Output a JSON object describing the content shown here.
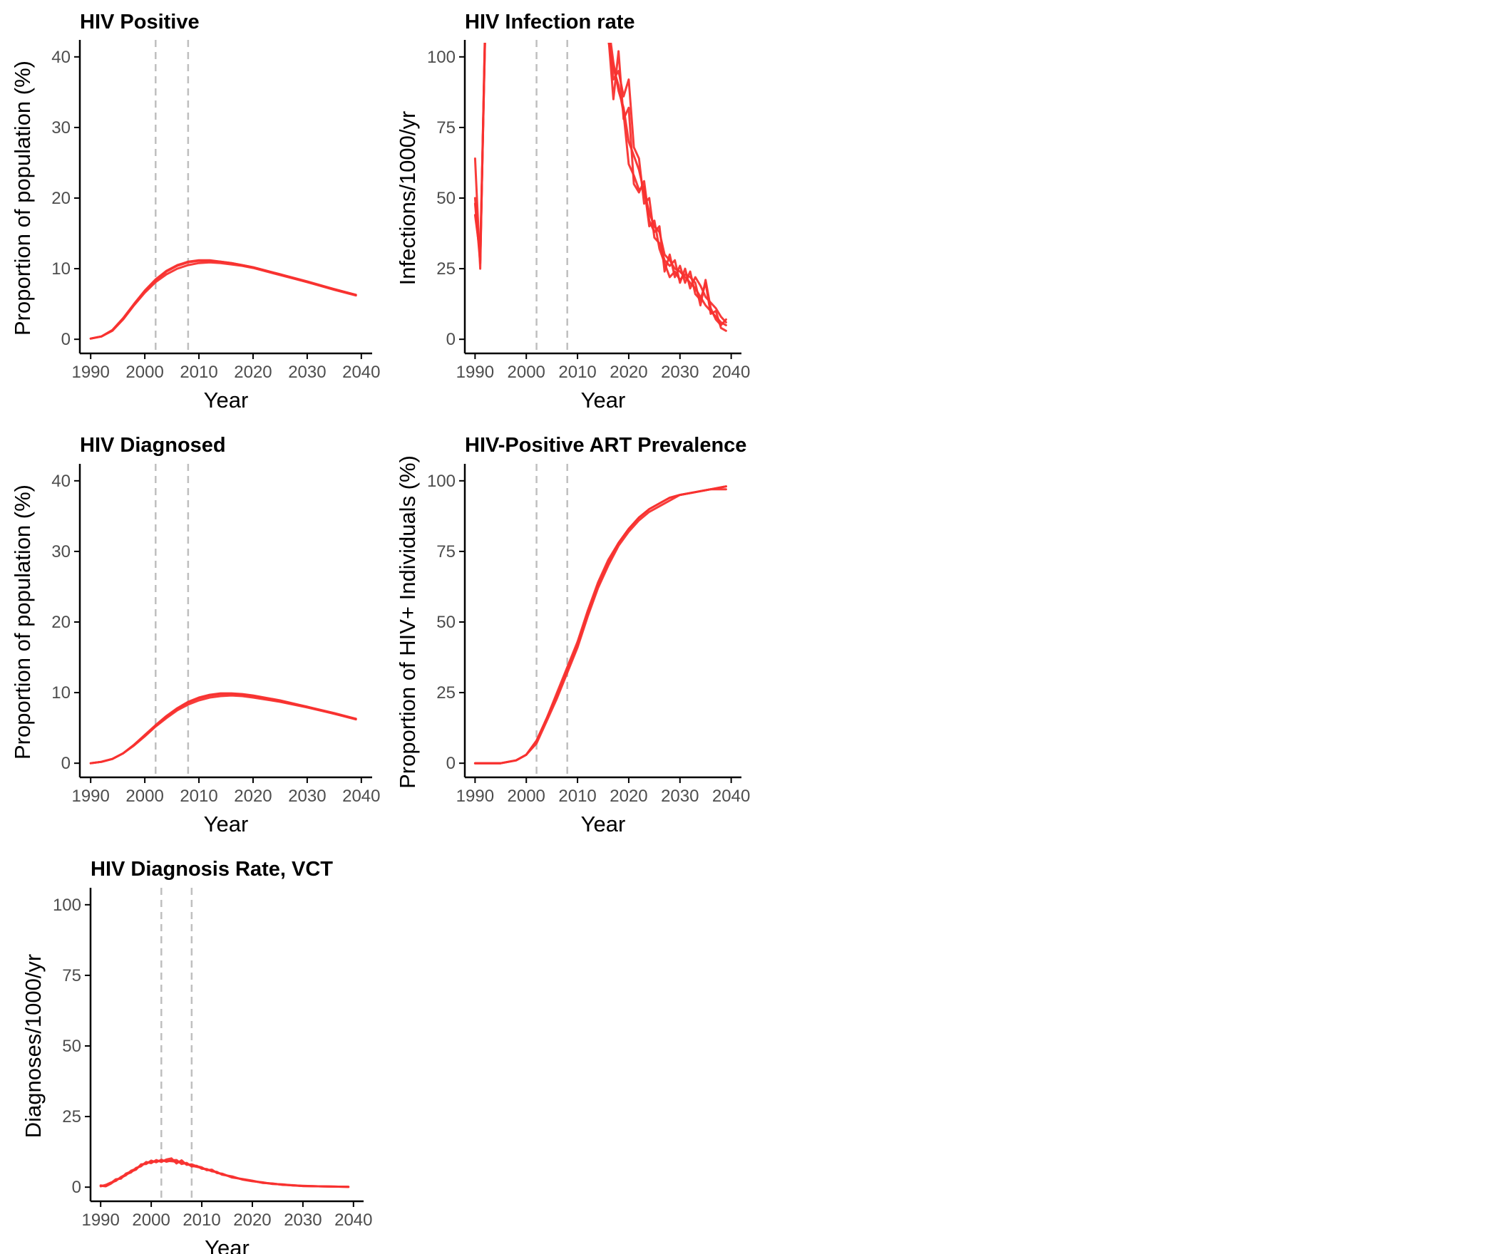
{
  "colors": {
    "series": "#f8312f",
    "vline": "#bfbfbf",
    "axis": "#000000",
    "tick_text": "#4d4d4d"
  },
  "chart_data": [
    {
      "type": "line",
      "title": "HIV Positive",
      "xlabel": "Year",
      "ylabel": "Proportion of population (%)",
      "xlim": [
        1988,
        2042
      ],
      "ylim": [
        -2,
        42
      ],
      "xticks": [
        "1990",
        "2000",
        "2010",
        "2020",
        "2030",
        "2040"
      ],
      "yticks": [
        "0",
        "10",
        "20",
        "30",
        "40"
      ],
      "vlines": [
        2002,
        2008
      ],
      "grid": false,
      "legend": "none",
      "series": [
        {
          "x": [
            1990,
            1992,
            1994,
            1996,
            1998,
            2000,
            2002,
            2004,
            2006,
            2008,
            2010,
            2012,
            2014,
            2016,
            2018,
            2020,
            2025,
            2030,
            2035,
            2039
          ],
          "y": [
            0.1,
            0.4,
            1.3,
            3.0,
            5.0,
            6.9,
            8.5,
            9.7,
            10.5,
            11.0,
            11.2,
            11.2,
            11.0,
            10.8,
            10.5,
            10.2,
            9.2,
            8.1,
            7.0,
            6.2
          ]
        },
        {
          "x": [
            1990,
            1992,
            1994,
            1996,
            1998,
            2000,
            2002,
            2004,
            2006,
            2008,
            2010,
            2012,
            2014,
            2016,
            2018,
            2020,
            2025,
            2030,
            2035,
            2039
          ],
          "y": [
            0.1,
            0.4,
            1.2,
            2.8,
            4.8,
            6.6,
            8.1,
            9.2,
            10.0,
            10.5,
            10.8,
            10.9,
            10.8,
            10.6,
            10.4,
            10.1,
            9.1,
            8.1,
            7.1,
            6.3
          ]
        },
        {
          "x": [
            1990,
            1992,
            1994,
            1996,
            1998,
            2000,
            2002,
            2004,
            2006,
            2008,
            2010,
            2012,
            2014,
            2016,
            2018,
            2020,
            2025,
            2030,
            2035,
            2039
          ],
          "y": [
            0.1,
            0.4,
            1.3,
            2.9,
            4.9,
            6.8,
            8.3,
            9.6,
            10.4,
            10.9,
            11.1,
            11.1,
            11.0,
            10.8,
            10.5,
            10.2,
            9.2,
            8.2,
            7.1,
            6.3
          ]
        }
      ]
    },
    {
      "type": "line",
      "title": "HIV Infection rate",
      "xlabel": "Year",
      "ylabel": "Infections/1000/yr",
      "xlim": [
        1988,
        2042
      ],
      "ylim": [
        -5,
        105
      ],
      "xticks": [
        "1990",
        "2000",
        "2010",
        "2020",
        "2030",
        "2040"
      ],
      "yticks": [
        "0",
        "25",
        "50",
        "75",
        "100"
      ],
      "vlines": [
        2002,
        2008
      ],
      "grid": false,
      "legend": "none",
      "series": [
        {
          "x": [
            1990,
            1991,
            1992,
            1993,
            2016,
            2017,
            2018,
            2019,
            2020,
            2021,
            2022,
            2023,
            2024,
            2025,
            2026,
            2027,
            2028,
            2029,
            2030,
            2031,
            2032,
            2033,
            2034,
            2035,
            2036,
            2037,
            2038,
            2039
          ],
          "y": [
            64,
            25,
            115,
            160,
            112,
            98,
            88,
            82,
            70,
            65,
            60,
            52,
            45,
            40,
            38,
            30,
            28,
            25,
            24,
            22,
            20,
            18,
            15,
            12,
            10,
            8,
            6,
            5
          ]
        },
        {
          "x": [
            1990,
            1991,
            1992,
            1993,
            2016,
            2017,
            2018,
            2019,
            2020,
            2021,
            2022,
            2023,
            2024,
            2025,
            2026,
            2027,
            2028,
            2029,
            2030,
            2031,
            2032,
            2033,
            2034,
            2035,
            2036,
            2037,
            2038,
            2039
          ],
          "y": [
            50,
            28,
            110,
            160,
            108,
            85,
            102,
            78,
            82,
            55,
            52,
            56,
            42,
            38,
            40,
            24,
            30,
            22,
            26,
            20,
            24,
            16,
            14,
            20,
            9,
            10,
            4,
            3
          ]
        },
        {
          "x": [
            1990,
            1991,
            1992,
            1993,
            2016,
            2017,
            2018,
            2019,
            2020,
            2021,
            2022,
            2023,
            2024,
            2025,
            2026,
            2027,
            2028,
            2029,
            2030,
            2031,
            2032,
            2033,
            2034,
            2035,
            2036,
            2037,
            2038,
            2039
          ],
          "y": [
            44,
            30,
            112,
            160,
            110,
            92,
            95,
            86,
            92,
            68,
            64,
            48,
            50,
            36,
            34,
            28,
            26,
            28,
            20,
            25,
            18,
            22,
            19,
            15,
            13,
            11,
            8,
            6
          ]
        },
        {
          "x": [
            1990,
            1991,
            1992,
            1993,
            2016,
            2017,
            2018,
            2019,
            2020,
            2021,
            2022,
            2023,
            2024,
            2025,
            2026,
            2027,
            2028,
            2029,
            2030,
            2031,
            2032,
            2033,
            2034,
            2035,
            2036,
            2037,
            2038,
            2039
          ],
          "y": [
            48,
            27,
            111,
            160,
            106,
            96,
            90,
            80,
            62,
            58,
            53,
            54,
            40,
            42,
            32,
            27,
            22,
            24,
            21,
            23,
            22,
            20,
            12,
            21,
            11,
            7,
            5,
            7
          ]
        }
      ]
    },
    {
      "type": "line",
      "title": "HIV Diagnosed",
      "xlabel": "Year",
      "ylabel": "Proportion of population (%)",
      "xlim": [
        1988,
        2042
      ],
      "ylim": [
        -2,
        42
      ],
      "xticks": [
        "1990",
        "2000",
        "2010",
        "2020",
        "2030",
        "2040"
      ],
      "yticks": [
        "0",
        "10",
        "20",
        "30",
        "40"
      ],
      "vlines": [
        2002,
        2008
      ],
      "grid": false,
      "legend": "none",
      "series": [
        {
          "x": [
            1990,
            1992,
            1994,
            1996,
            1998,
            2000,
            2002,
            2004,
            2006,
            2008,
            2010,
            2012,
            2014,
            2016,
            2018,
            2020,
            2025,
            2030,
            2035,
            2039
          ],
          "y": [
            0.0,
            0.2,
            0.6,
            1.4,
            2.6,
            3.9,
            5.3,
            6.6,
            7.7,
            8.6,
            9.2,
            9.6,
            9.8,
            9.8,
            9.7,
            9.5,
            8.8,
            8.0,
            7.0,
            6.2
          ]
        },
        {
          "x": [
            1990,
            1992,
            1994,
            1996,
            1998,
            2000,
            2002,
            2004,
            2006,
            2008,
            2010,
            2012,
            2014,
            2016,
            2018,
            2020,
            2025,
            2030,
            2035,
            2039
          ],
          "y": [
            0.0,
            0.2,
            0.6,
            1.4,
            2.5,
            3.8,
            5.2,
            6.4,
            7.5,
            8.3,
            8.9,
            9.3,
            9.5,
            9.6,
            9.5,
            9.3,
            8.7,
            7.9,
            7.0,
            6.3
          ]
        },
        {
          "x": [
            1990,
            1992,
            1994,
            1996,
            1998,
            2000,
            2002,
            2004,
            2006,
            2008,
            2010,
            2012,
            2014,
            2016,
            2018,
            2020,
            2025,
            2030,
            2035,
            2039
          ],
          "y": [
            0.0,
            0.2,
            0.6,
            1.4,
            2.6,
            4.0,
            5.4,
            6.7,
            7.8,
            8.7,
            9.3,
            9.7,
            9.9,
            9.9,
            9.8,
            9.6,
            8.9,
            8.0,
            7.1,
            6.3
          ]
        }
      ]
    },
    {
      "type": "line",
      "title": "HIV-Positive ART Prevalence",
      "xlabel": "Year",
      "ylabel": "Proportion of HIV+ Individuals (%)",
      "xlim": [
        1988,
        2042
      ],
      "ylim": [
        -5,
        105
      ],
      "xticks": [
        "1990",
        "2000",
        "2010",
        "2020",
        "2030",
        "2040"
      ],
      "yticks": [
        "0",
        "25",
        "50",
        "75",
        "100"
      ],
      "vlines": [
        2002,
        2008
      ],
      "grid": false,
      "legend": "none",
      "series": [
        {
          "x": [
            1990,
            1995,
            1998,
            2000,
            2002,
            2004,
            2006,
            2008,
            2010,
            2012,
            2014,
            2016,
            2018,
            2020,
            2022,
            2024,
            2026,
            2028,
            2030,
            2033,
            2036,
            2039
          ],
          "y": [
            0,
            0,
            1,
            3,
            8,
            16,
            24,
            33,
            42,
            53,
            63,
            71,
            78,
            83,
            87,
            90,
            92,
            94,
            95,
            96,
            97,
            98
          ]
        },
        {
          "x": [
            1990,
            1995,
            1998,
            2000,
            2002,
            2004,
            2006,
            2008,
            2010,
            2012,
            2014,
            2016,
            2018,
            2020,
            2022,
            2024,
            2026,
            2028,
            2030,
            2033,
            2036,
            2039
          ],
          "y": [
            0,
            0,
            1,
            3,
            7,
            15,
            23,
            32,
            41,
            52,
            62,
            70,
            77,
            82,
            86,
            89,
            91,
            93,
            95,
            96,
            97,
            97
          ]
        },
        {
          "x": [
            1990,
            1995,
            1998,
            2000,
            2002,
            2004,
            2006,
            2008,
            2010,
            2012,
            2014,
            2016,
            2018,
            2020,
            2022,
            2024,
            2026,
            2028,
            2030,
            2033,
            2036,
            2039
          ],
          "y": [
            0,
            0,
            1,
            3,
            8,
            16,
            25,
            34,
            43,
            54,
            64,
            72,
            78,
            83,
            87,
            90,
            92,
            94,
            95,
            96,
            97,
            98
          ]
        }
      ]
    },
    {
      "type": "line",
      "title": "HIV Diagnosis Rate, VCT",
      "xlabel": "Year",
      "ylabel": "Diagnoses/1000/yr",
      "xlim": [
        1988,
        2042
      ],
      "ylim": [
        -5,
        105
      ],
      "xticks": [
        "1990",
        "2000",
        "2010",
        "2020",
        "2030",
        "2040"
      ],
      "yticks": [
        "0",
        "25",
        "50",
        "75",
        "100"
      ],
      "vlines": [
        2002,
        2008
      ],
      "grid": false,
      "legend": "none",
      "series": [
        {
          "x": [
            1990,
            1991,
            1992,
            1993,
            1994,
            1995,
            1996,
            1997,
            1998,
            1999,
            2000,
            2001,
            2002,
            2003,
            2004,
            2005,
            2006,
            2007,
            2008,
            2009,
            2010,
            2011,
            2012,
            2013,
            2014,
            2016,
            2018,
            2020,
            2022,
            2024,
            2026,
            2028,
            2030,
            2033,
            2036,
            2039
          ],
          "y": [
            0.5,
            0.3,
            1.2,
            2.5,
            3.3,
            4.2,
            5.8,
            6.5,
            7.8,
            8.6,
            9.0,
            9.1,
            9.4,
            9.3,
            9.2,
            9.0,
            8.8,
            8.2,
            7.6,
            7.2,
            6.8,
            6.2,
            5.8,
            5.2,
            4.6,
            3.6,
            2.8,
            2.2,
            1.6,
            1.2,
            0.9,
            0.6,
            0.4,
            0.3,
            0.2,
            0.1
          ]
        },
        {
          "x": [
            1990,
            1991,
            1992,
            1993,
            1994,
            1995,
            1996,
            1997,
            1998,
            1999,
            2000,
            2001,
            2002,
            2003,
            2004,
            2005,
            2006,
            2007,
            2008,
            2009,
            2010,
            2011,
            2012,
            2013,
            2014,
            2016,
            2018,
            2020,
            2022,
            2024,
            2026,
            2028,
            2030,
            2033,
            2036,
            2039
          ],
          "y": [
            0.3,
            0.8,
            1.6,
            2.2,
            3.6,
            4.5,
            5.2,
            6.8,
            7.4,
            8.9,
            8.5,
            9.6,
            8.9,
            9.8,
            10.2,
            8.4,
            9.5,
            7.9,
            8.1,
            7.4,
            7.0,
            6.0,
            6.2,
            5.0,
            4.8,
            3.4,
            2.9,
            2.3,
            1.5,
            1.3,
            0.8,
            0.7,
            0.4,
            0.3,
            0.2,
            0.1
          ]
        },
        {
          "x": [
            1990,
            1991,
            1992,
            1993,
            1994,
            1995,
            1996,
            1997,
            1998,
            1999,
            2000,
            2001,
            2002,
            2003,
            2004,
            2005,
            2006,
            2007,
            2008,
            2009,
            2010,
            2011,
            2012,
            2013,
            2014,
            2016,
            2018,
            2020,
            2022,
            2024,
            2026,
            2028,
            2030,
            2033,
            2036,
            2039
          ],
          "y": [
            0.6,
            0.4,
            1.4,
            2.8,
            3.0,
            4.8,
            5.5,
            6.2,
            8.1,
            8.2,
            9.4,
            8.8,
            9.7,
            9.0,
            9.5,
            9.6,
            8.2,
            8.6,
            7.3,
            7.6,
            6.5,
            6.4,
            5.6,
            5.4,
            4.4,
            3.8,
            2.7,
            2.1,
            1.7,
            1.1,
            1.0,
            0.6,
            0.5,
            0.3,
            0.2,
            0.1
          ]
        }
      ]
    }
  ]
}
